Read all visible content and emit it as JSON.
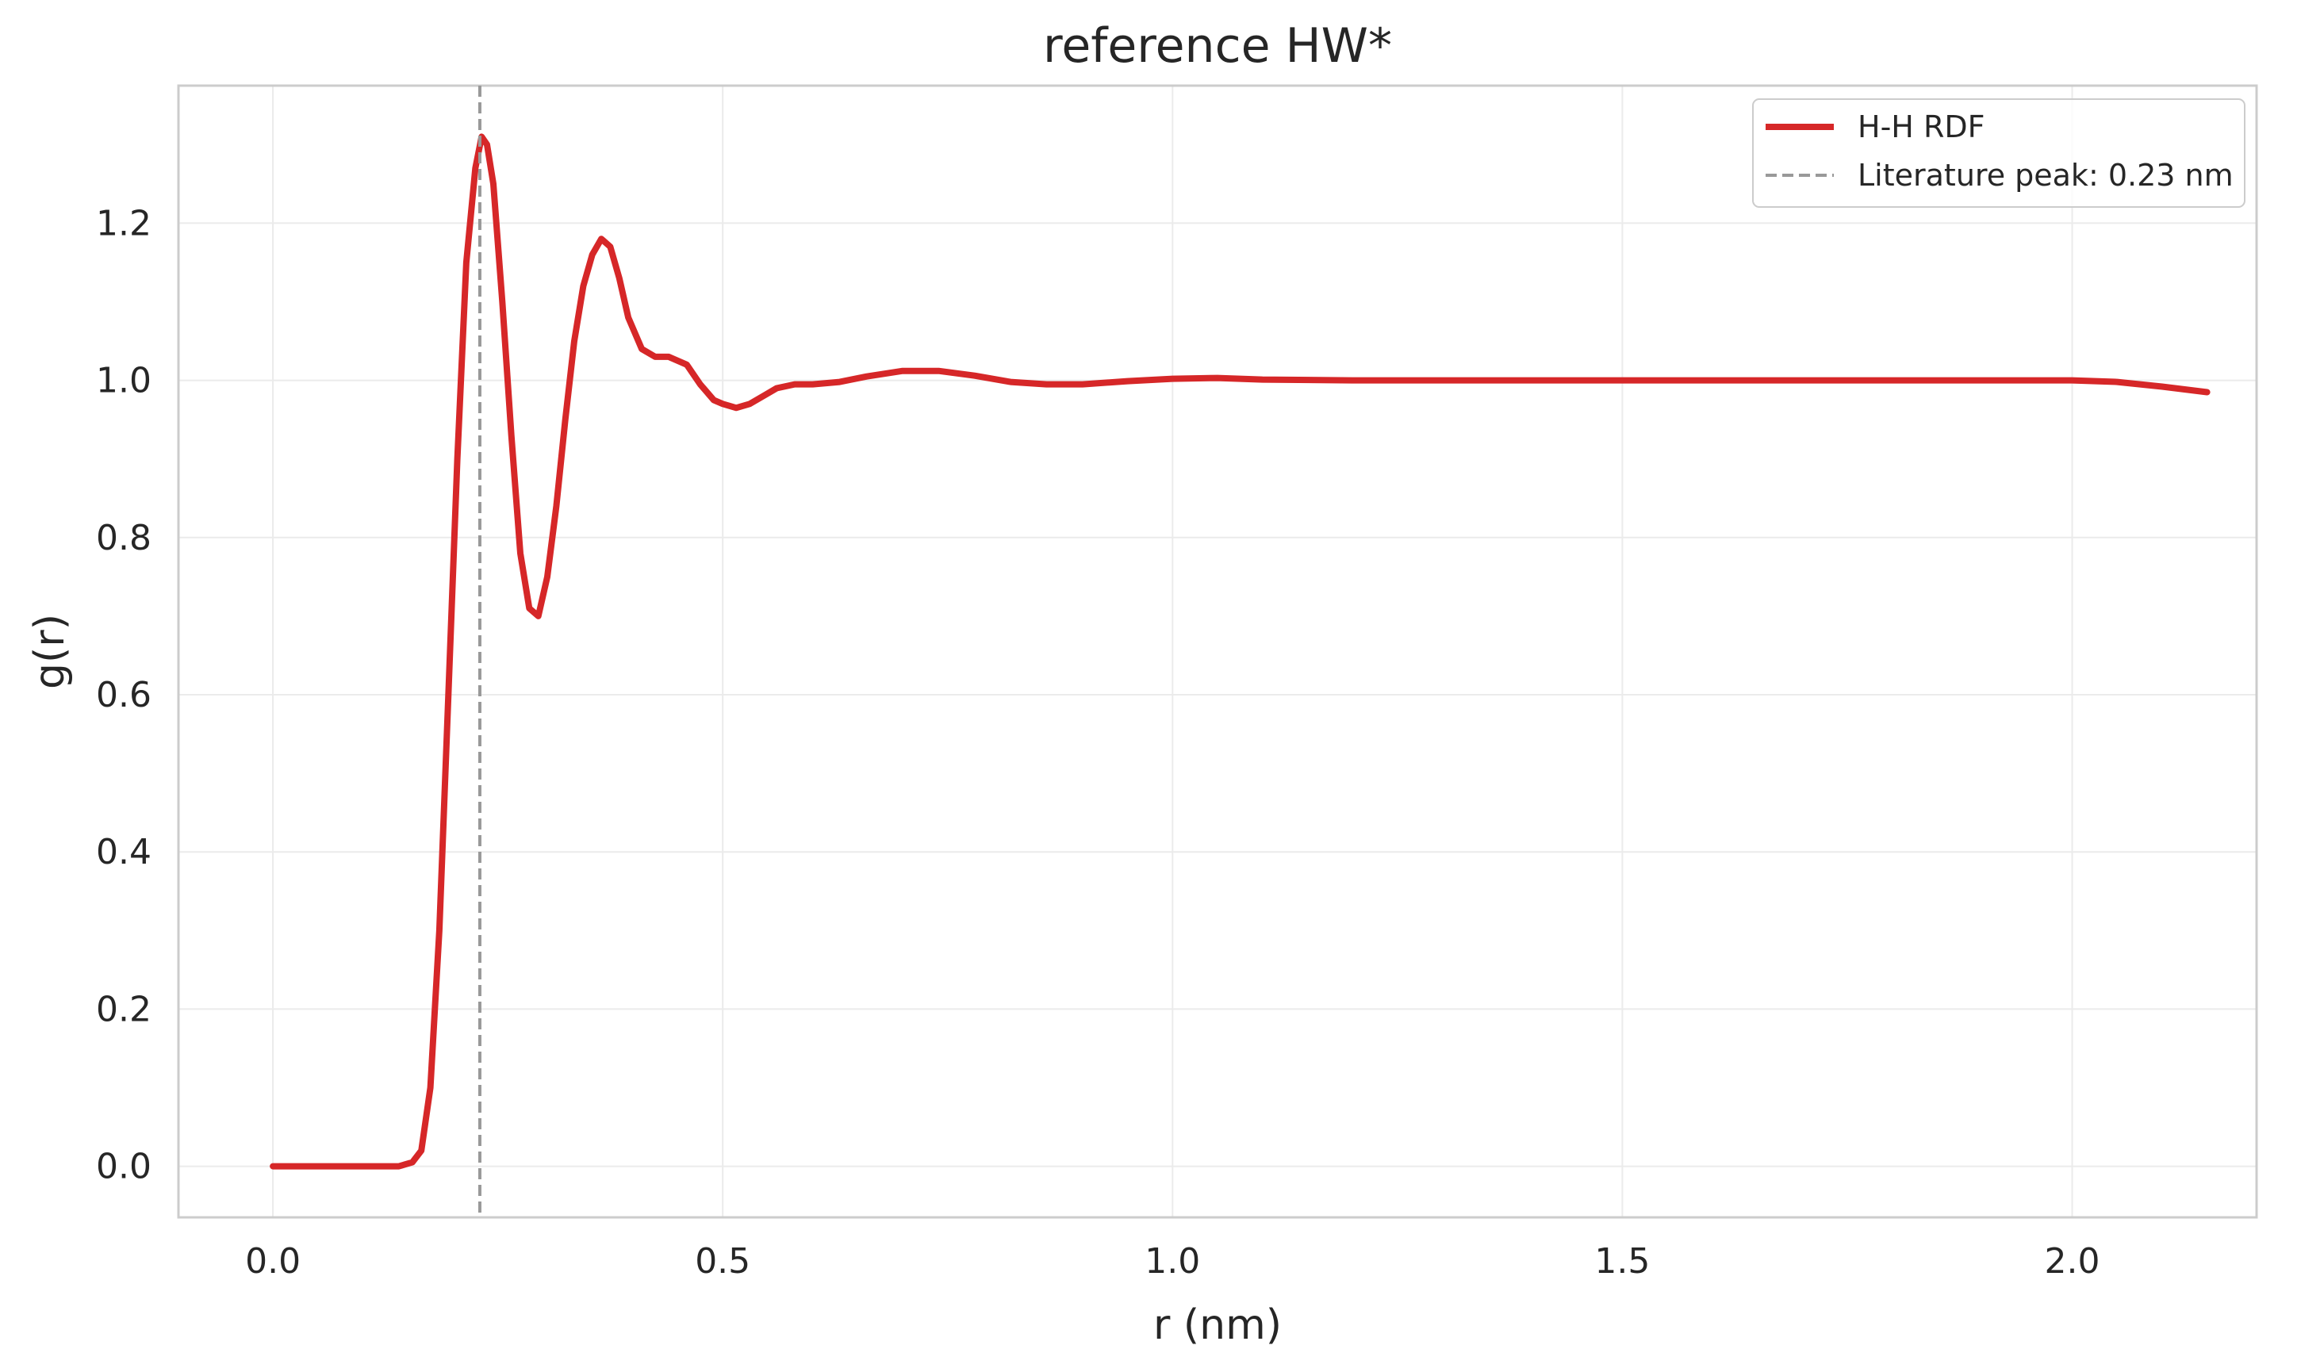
{
  "chart_data": {
    "type": "line",
    "title": "reference HW*",
    "xlabel": "r (nm)",
    "ylabel": "g(r)",
    "xlim": [
      -0.105,
      2.205
    ],
    "ylim": [
      -0.065,
      1.375
    ],
    "xticks": [
      0.0,
      0.5,
      1.0,
      1.5,
      2.0
    ],
    "xtick_labels": [
      "0.0",
      "0.5",
      "1.0",
      "1.5",
      "2.0"
    ],
    "yticks": [
      0.0,
      0.2,
      0.4,
      0.6,
      0.8,
      1.0,
      1.2
    ],
    "ytick_labels": [
      "0.0",
      "0.2",
      "0.4",
      "0.6",
      "0.8",
      "1.0",
      "1.2"
    ],
    "grid": true,
    "legend_position": "top-right",
    "series": [
      {
        "name": "H-H RDF",
        "color": "#d62728",
        "style": "solid",
        "x": [
          0.0,
          0.05,
          0.1,
          0.14,
          0.155,
          0.165,
          0.175,
          0.185,
          0.195,
          0.205,
          0.215,
          0.225,
          0.232,
          0.238,
          0.245,
          0.255,
          0.265,
          0.275,
          0.285,
          0.295,
          0.305,
          0.315,
          0.325,
          0.335,
          0.345,
          0.355,
          0.365,
          0.375,
          0.385,
          0.395,
          0.41,
          0.425,
          0.44,
          0.46,
          0.475,
          0.49,
          0.5,
          0.515,
          0.53,
          0.545,
          0.56,
          0.58,
          0.6,
          0.63,
          0.66,
          0.7,
          0.74,
          0.78,
          0.82,
          0.86,
          0.9,
          0.95,
          1.0,
          1.05,
          1.1,
          1.2,
          1.3,
          1.4,
          1.5,
          1.6,
          1.7,
          1.8,
          1.9,
          2.0,
          2.05,
          2.1,
          2.15
        ],
        "y": [
          0.0,
          0.0,
          0.0,
          0.0,
          0.005,
          0.02,
          0.1,
          0.3,
          0.6,
          0.9,
          1.15,
          1.27,
          1.31,
          1.3,
          1.25,
          1.1,
          0.93,
          0.78,
          0.71,
          0.7,
          0.75,
          0.84,
          0.95,
          1.05,
          1.12,
          1.16,
          1.18,
          1.17,
          1.13,
          1.08,
          1.04,
          1.03,
          1.03,
          1.02,
          0.995,
          0.975,
          0.97,
          0.965,
          0.97,
          0.98,
          0.99,
          0.995,
          0.995,
          0.998,
          1.005,
          1.012,
          1.012,
          1.006,
          0.998,
          0.995,
          0.995,
          0.999,
          1.002,
          1.003,
          1.001,
          1.0,
          1.0,
          1.0,
          1.0,
          1.0,
          1.0,
          1.0,
          1.0,
          1.0,
          0.998,
          0.992,
          0.985
        ]
      },
      {
        "name": "Literature peak: 0.23 nm",
        "color": "#999999",
        "style": "dashed",
        "type": "vline",
        "x": 0.23
      }
    ]
  }
}
